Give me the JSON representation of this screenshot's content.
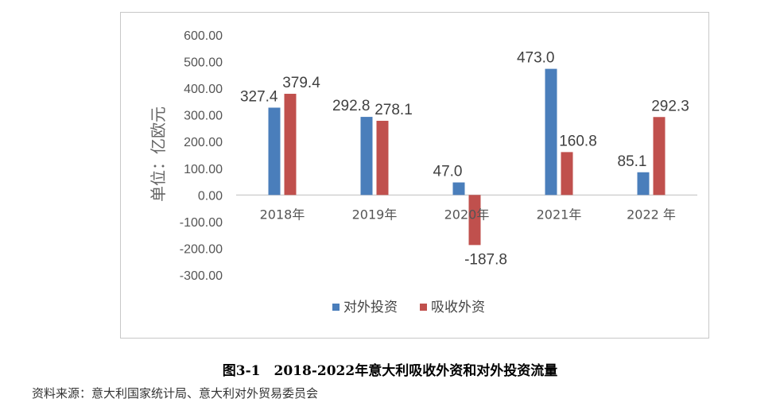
{
  "caption": "图3-1　2018-2022年意大利吸收外资和对外投资流量",
  "source": "资料来源：意大利国家统计局、意大利对外贸易委员会",
  "chart_data": {
    "type": "bar",
    "categories": [
      "2018年",
      "2019年",
      "2020年",
      "2021年",
      "2022 年"
    ],
    "series": [
      {
        "name": "对外投资",
        "color": "#4a7ebb",
        "values": [
          327.4,
          292.8,
          47.0,
          473.0,
          85.1
        ],
        "labels": [
          "327.4",
          "292.8",
          "47.0",
          "473.0",
          "85.1"
        ]
      },
      {
        "name": "吸收外资",
        "color": "#c0504d",
        "values": [
          379.4,
          278.1,
          -187.8,
          160.8,
          292.3
        ],
        "labels": [
          "379.4",
          "278.1",
          "-187.8",
          "160.8",
          "292.3"
        ]
      }
    ],
    "ylabel": "单位：亿欧元",
    "ylim": [
      -300,
      600
    ],
    "yticks": [
      "-300.00",
      "-200.00",
      "-100.00",
      "0.00",
      "100.00",
      "200.00",
      "300.00",
      "400.00",
      "500.00",
      "600.00"
    ],
    "ytick_values": [
      -300,
      -200,
      -100,
      0,
      100,
      200,
      300,
      400,
      500,
      600
    ],
    "legend_position": "bottom",
    "grid": false
  }
}
